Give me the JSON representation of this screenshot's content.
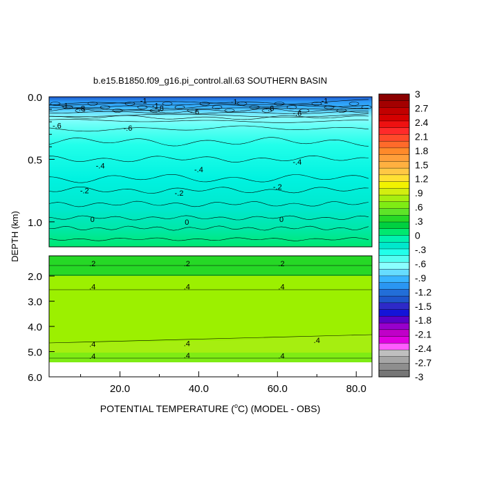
{
  "chart_data": {
    "type": "heatmap",
    "title": "b.e15.B1850.f09_g16.pi_control.all.63 SOUTHERN BASIN",
    "xlabel_pre": "POTENTIAL TEMPERATURE (",
    "xlabel_sup": "o",
    "xlabel_post": "C) (MODEL - OBS)",
    "ylabel": "DEPTH (km)",
    "xlim": [
      2,
      84
    ],
    "x_ticks": [
      "20.0",
      "40.0",
      "60.0",
      "80.0"
    ],
    "upper_y_ticks": [
      "0.0",
      "0.5",
      "1.0"
    ],
    "lower_y_ticks": [
      "2.0",
      "3.0",
      "4.0",
      "5.0",
      "6.0"
    ],
    "upper_depth_range_km": [
      0.0,
      1.2
    ],
    "lower_depth_range_km": [
      1.2,
      6.0
    ],
    "colorbar_labels": [
      "3",
      "2.7",
      "2.4",
      "2.1",
      "1.8",
      "1.5",
      "1.2",
      ".9",
      ".6",
      ".3",
      "0",
      "-.3",
      "-.6",
      "-.9",
      "-1.2",
      "-1.5",
      "-1.8",
      "-2.1",
      "-2.4",
      "-2.7",
      "-3"
    ],
    "colorbar_colors": [
      "#8b0000",
      "#a30000",
      "#c20000",
      "#d40000",
      "#ee1111",
      "#ff2a2a",
      "#ff4a2a",
      "#ff6a2a",
      "#ff8a2a",
      "#ff9f3a",
      "#ffb040",
      "#ffc844",
      "#ffe033",
      "#f2f200",
      "#d2ee10",
      "#a6ee10",
      "#7fec14",
      "#5ee428",
      "#26d826",
      "#00d040",
      "#00e870",
      "#00f2b0",
      "#00e8cc",
      "#22ffea",
      "#55fff2",
      "#8affff",
      "#66dcff",
      "#38b4ff",
      "#2a96f2",
      "#226ed8",
      "#1e56cc",
      "#2e2ac8",
      "#1414d8",
      "#5a00c8",
      "#9800cc",
      "#c000c8",
      "#e000e0",
      "#ff5cff",
      "#bfbfbf",
      "#a6a6a6",
      "#8e8e8e",
      "#767676"
    ],
    "contour_labels_upper": [
      {
        "text": "-1",
        "x": 26,
        "d": 0.03
      },
      {
        "text": "-1",
        "x": 49,
        "d": 0.04
      },
      {
        "text": "-1",
        "x": 72,
        "d": 0.03
      },
      {
        "text": "-1",
        "x": 6,
        "d": 0.07
      },
      {
        "text": "-1",
        "x": 29,
        "d": 0.07
      },
      {
        "text": "-.8",
        "x": 10,
        "d": 0.09
      },
      {
        "text": "-.8",
        "x": 30,
        "d": 0.09
      },
      {
        "text": "-.8",
        "x": 58,
        "d": 0.09
      },
      {
        "text": "-.6",
        "x": 39,
        "d": 0.12
      },
      {
        "text": "-.6",
        "x": 65,
        "d": 0.13
      },
      {
        "text": "-.6",
        "x": 4,
        "d": 0.23
      },
      {
        "text": "-.6",
        "x": 22,
        "d": 0.25
      },
      {
        "text": "-.4",
        "x": 15,
        "d": 0.55
      },
      {
        "text": "-.4",
        "x": 40,
        "d": 0.58
      },
      {
        "text": "-.4",
        "x": 65,
        "d": 0.52
      },
      {
        "text": "-.2",
        "x": 11,
        "d": 0.75
      },
      {
        "text": "-.2",
        "x": 35,
        "d": 0.77
      },
      {
        "text": "-.2",
        "x": 60,
        "d": 0.72
      },
      {
        "text": "0",
        "x": 13,
        "d": 0.98
      },
      {
        "text": "0",
        "x": 37,
        "d": 1.0
      },
      {
        "text": "0",
        "x": 61,
        "d": 0.98
      }
    ],
    "contour_labels_lower": [
      {
        "text": ".2",
        "x": 13,
        "d": 1.5
      },
      {
        "text": ".2",
        "x": 37,
        "d": 1.5
      },
      {
        "text": ".2",
        "x": 61,
        "d": 1.5
      },
      {
        "text": ".4",
        "x": 13,
        "d": 2.42
      },
      {
        "text": ".4",
        "x": 37,
        "d": 2.42
      },
      {
        "text": ".4",
        "x": 61,
        "d": 2.42
      },
      {
        "text": ".4",
        "x": 13,
        "d": 4.7
      },
      {
        "text": ".4",
        "x": 37,
        "d": 4.67
      },
      {
        "text": ".4",
        "x": 70,
        "d": 4.55
      },
      {
        "text": ".4",
        "x": 13,
        "d": 5.18
      },
      {
        "text": ".4",
        "x": 37,
        "d": 5.15
      },
      {
        "text": ".4",
        "x": 61,
        "d": 5.17
      }
    ]
  }
}
